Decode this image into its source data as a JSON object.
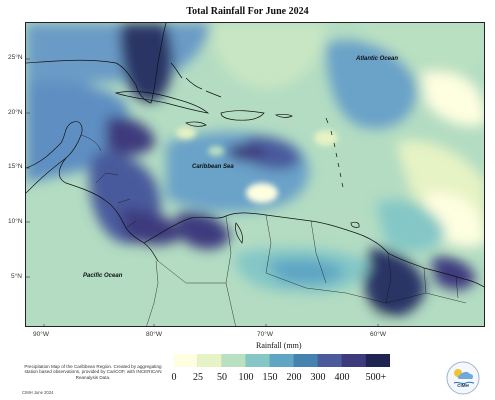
{
  "title": "Total Rainfall For June 2024",
  "map": {
    "labels": {
      "atlantic": "Atlantic Ocean",
      "caribbean": "Caribbean Sea",
      "pacific": "Pacific Ocean"
    },
    "lat_ticks": [
      "25°N",
      "20°N",
      "15°N",
      "10°N",
      "5°N"
    ],
    "lon_ticks": [
      "90°W",
      "80°W",
      "70°W",
      "60°W"
    ]
  },
  "legend": {
    "title": "Rainfall (mm)",
    "colors": [
      "#fefee0",
      "#e6f3c4",
      "#b9e0c1",
      "#84c7c6",
      "#5ea6c4",
      "#4682b0",
      "#4a5a9c",
      "#3d3a7e",
      "#1f2452"
    ],
    "tick_labels": [
      "0",
      "25",
      "50",
      "100",
      "150",
      "200",
      "300",
      "400",
      "500+"
    ]
  },
  "footnote": "Precipitation Map of the Caribbean Region. Created by aggregating station based observations, provided by CariCOF, with INCERICAN Reanalysis Data.",
  "credit": "CIMH June 2024",
  "logo_text": "CIMH"
}
